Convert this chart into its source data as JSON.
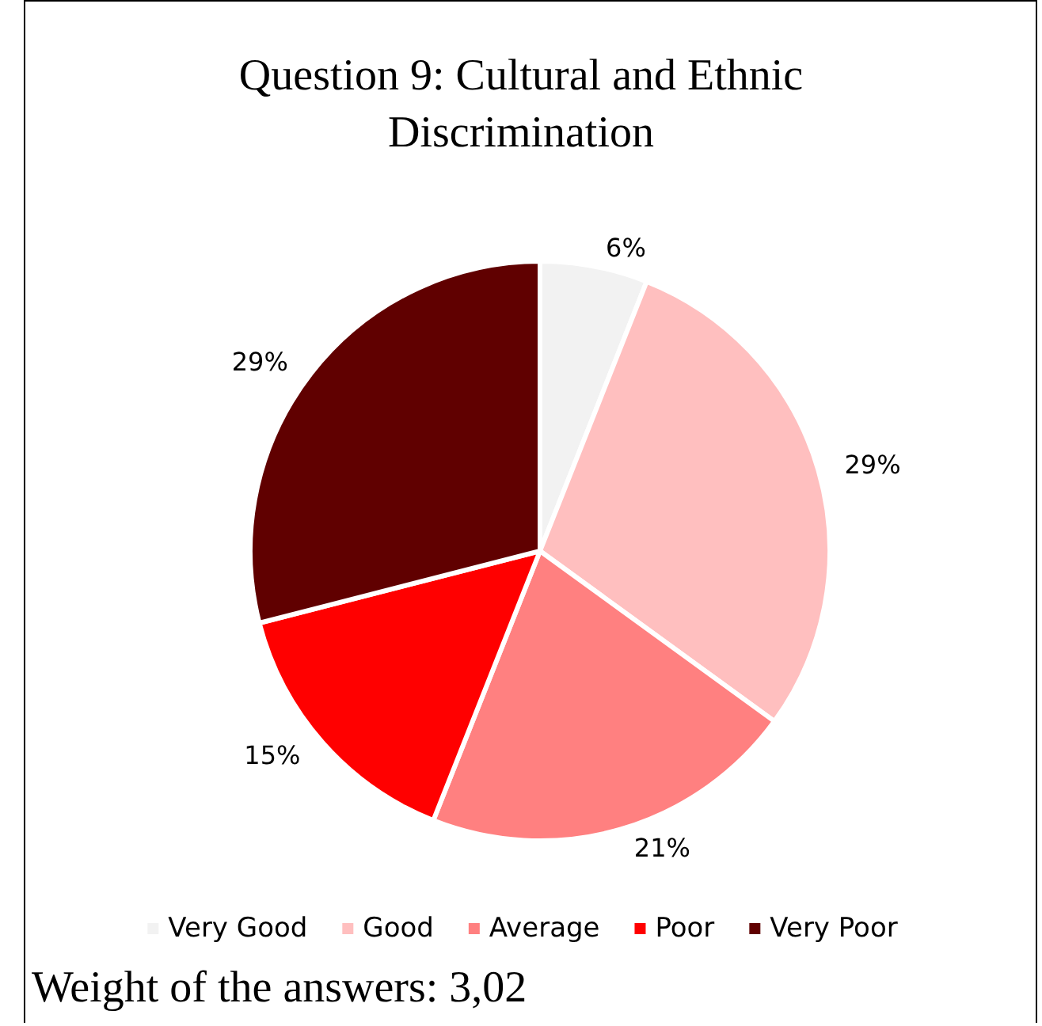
{
  "chart_data": {
    "type": "pie",
    "title": "Question 9: Cultural and Ethnic\nDiscrimination",
    "categories": [
      "Very Good",
      "Good",
      "Average",
      "Poor",
      "Very Poor"
    ],
    "values": [
      6,
      29,
      21,
      15,
      29
    ],
    "value_labels": [
      "6%",
      "29%",
      "21%",
      "15%",
      "29%"
    ],
    "colors": [
      "#f2f2f2",
      "#ffbfbf",
      "#ff8080",
      "#ff0000",
      "#600000"
    ],
    "legend": "bottom",
    "annotations": [
      "Weight of the answers: 3,02"
    ]
  }
}
